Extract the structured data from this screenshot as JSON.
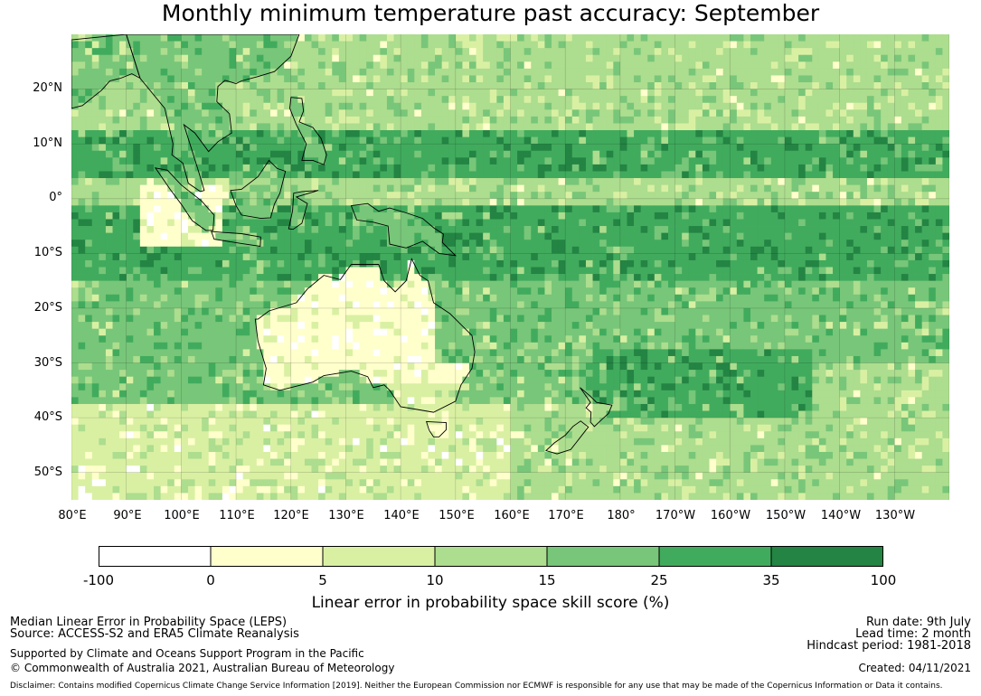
{
  "title": "Monthly minimum temperature past accuracy: September",
  "map": {
    "lat_ticks": [
      "20°N",
      "10°N",
      "0°",
      "10°S",
      "20°S",
      "30°S",
      "40°S",
      "50°S"
    ],
    "lon_ticks": [
      "80°E",
      "90°E",
      "100°E",
      "110°E",
      "120°E",
      "130°E",
      "140°E",
      "150°E",
      "160°E",
      "170°E",
      "180°",
      "170°W",
      "160°W",
      "150°W",
      "140°W",
      "130°W"
    ],
    "ocean_bands": [
      {
        "from_lat": 30,
        "to_lat": 13,
        "level": 3
      },
      {
        "from_lat": 13,
        "to_lat": 4,
        "level": 5
      },
      {
        "from_lat": 4,
        "to_lat": -1,
        "level": 3
      },
      {
        "from_lat": -1,
        "to_lat": -15,
        "level": 5
      },
      {
        "from_lat": -15,
        "to_lat": -38,
        "level": 4
      },
      {
        "from_lat": -38,
        "to_lat": -55,
        "level": 2
      }
    ]
  },
  "colorbar": {
    "ticks": [
      "-100",
      "0",
      "5",
      "10",
      "15",
      "25",
      "35",
      "100"
    ],
    "colors": [
      "#ffffff",
      "#ffffcc",
      "#d9f0a3",
      "#addd8e",
      "#78c679",
      "#41ab5d",
      "#238443"
    ],
    "label": "Linear error in probability space skill score (%)"
  },
  "footer": {
    "left_line1": "Median Linear Error in Probability Space (LEPS)",
    "left_line2": "Source: ACCESS-S2 and ERA5 Climate Reanalysis",
    "left_line3": "Supported by Climate and Oceans Support Program in the Pacific",
    "left_line4": "© Commonwealth of Australia 2021, Australian Bureau of Meteorology",
    "right_line1": "Run date: 9th July",
    "right_line2": "Lead time: 2 month",
    "right_line3": "Hindcast period: 1981-2018",
    "right_line4": "Created: 04/11/2021",
    "disclaimer": "Disclaimer: Contains modified Copernicus Climate Change Service Information [2019]. Neither the European Commission nor ECMWF is responsible for any use that may be made of the Copernicus Information or Data it contains."
  }
}
